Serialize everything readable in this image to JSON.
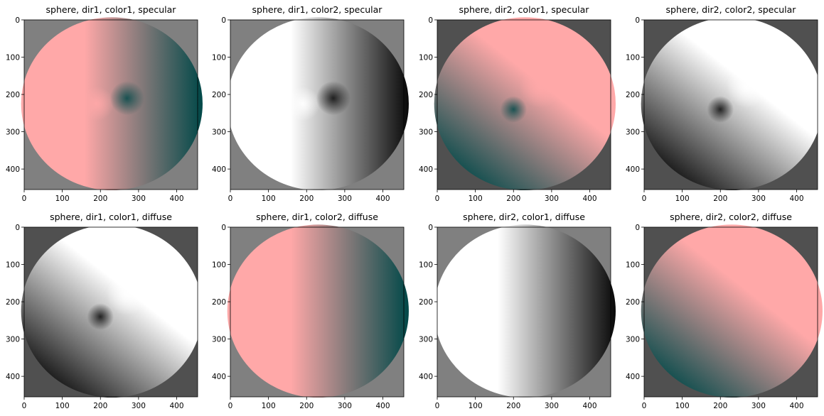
{
  "figure": {
    "background": "#ffffff"
  },
  "colors": {
    "pink": "#ffa8a8",
    "teal": "#004848",
    "white": "#ffffff",
    "black": "#080808",
    "bg_gray": "#808080",
    "bg_dark": "#505050",
    "axis": "#000000"
  },
  "chart_data": [
    {
      "type": "heatmap",
      "title": "sphere, dir1, color1, specular",
      "xlim": [
        0,
        455
      ],
      "ylim": [
        455,
        0
      ],
      "xticks": [
        0,
        100,
        200,
        300,
        400
      ],
      "yticks": [
        0,
        100,
        200,
        300,
        400
      ],
      "background": "bg_gray",
      "shading": "horizontal",
      "colors": [
        "pink",
        "teal"
      ],
      "highlight": {
        "x": 270,
        "y": 210
      },
      "grid": false,
      "legend": "none"
    },
    {
      "type": "heatmap",
      "title": "sphere, dir1, color2, specular",
      "xlim": [
        0,
        455
      ],
      "ylim": [
        455,
        0
      ],
      "xticks": [
        0,
        100,
        200,
        300,
        400
      ],
      "yticks": [
        0,
        100,
        200,
        300,
        400
      ],
      "background": "bg_gray",
      "shading": "horizontal",
      "colors": [
        "white",
        "black"
      ],
      "highlight": {
        "x": 270,
        "y": 210
      },
      "grid": false,
      "legend": "none"
    },
    {
      "type": "heatmap",
      "title": "sphere, dir2, color1, specular",
      "xlim": [
        0,
        455
      ],
      "ylim": [
        455,
        0
      ],
      "xticks": [
        0,
        100,
        200,
        300,
        400
      ],
      "yticks": [
        0,
        100,
        200,
        300,
        400
      ],
      "background": "bg_dark",
      "shading": "diagonal",
      "colors": [
        "pink",
        "teal"
      ],
      "highlight": {
        "x": 200,
        "y": 240
      },
      "grid": false,
      "legend": "none"
    },
    {
      "type": "heatmap",
      "title": "sphere, dir2, color2, specular",
      "xlim": [
        0,
        455
      ],
      "ylim": [
        455,
        0
      ],
      "xticks": [
        0,
        100,
        200,
        300,
        400
      ],
      "yticks": [
        0,
        100,
        200,
        300,
        400
      ],
      "background": "bg_dark",
      "shading": "diagonal",
      "colors": [
        "white",
        "black"
      ],
      "highlight": {
        "x": 200,
        "y": 240
      },
      "grid": false,
      "legend": "none"
    },
    {
      "type": "heatmap",
      "title": "sphere, dir1, color1, diffuse",
      "xlim": [
        0,
        455
      ],
      "ylim": [
        455,
        0
      ],
      "xticks": [
        0,
        100,
        200,
        300,
        400
      ],
      "yticks": [
        0,
        100,
        200,
        300,
        400
      ],
      "background": "bg_dark",
      "shading": "diagonal",
      "colors": [
        "white",
        "black"
      ],
      "highlight": {
        "x": 200,
        "y": 240
      },
      "grid": false,
      "legend": "none"
    },
    {
      "type": "heatmap",
      "title": "sphere, dir1, color2, diffuse",
      "xlim": [
        0,
        455
      ],
      "ylim": [
        455,
        0
      ],
      "xticks": [
        0,
        100,
        200,
        300,
        400
      ],
      "yticks": [
        0,
        100,
        200,
        300,
        400
      ],
      "background": "bg_gray",
      "shading": "horizontal",
      "colors": [
        "pink",
        "teal"
      ],
      "highlight": null,
      "grid": false,
      "legend": "none"
    },
    {
      "type": "heatmap",
      "title": "sphere, dir2, color1, diffuse",
      "xlim": [
        0,
        455
      ],
      "ylim": [
        455,
        0
      ],
      "xticks": [
        0,
        100,
        200,
        300,
        400
      ],
      "yticks": [
        0,
        100,
        200,
        300,
        400
      ],
      "background": "bg_gray",
      "shading": "horizontal",
      "colors": [
        "white",
        "black"
      ],
      "highlight": null,
      "grid": false,
      "legend": "none"
    },
    {
      "type": "heatmap",
      "title": "sphere, dir2, color2, diffuse",
      "xlim": [
        0,
        455
      ],
      "ylim": [
        455,
        0
      ],
      "xticks": [
        0,
        100,
        200,
        300,
        400
      ],
      "yticks": [
        0,
        100,
        200,
        300,
        400
      ],
      "background": "bg_dark",
      "shading": "diagonal",
      "colors": [
        "pink",
        "teal"
      ],
      "highlight": null,
      "grid": false,
      "legend": "none"
    }
  ]
}
